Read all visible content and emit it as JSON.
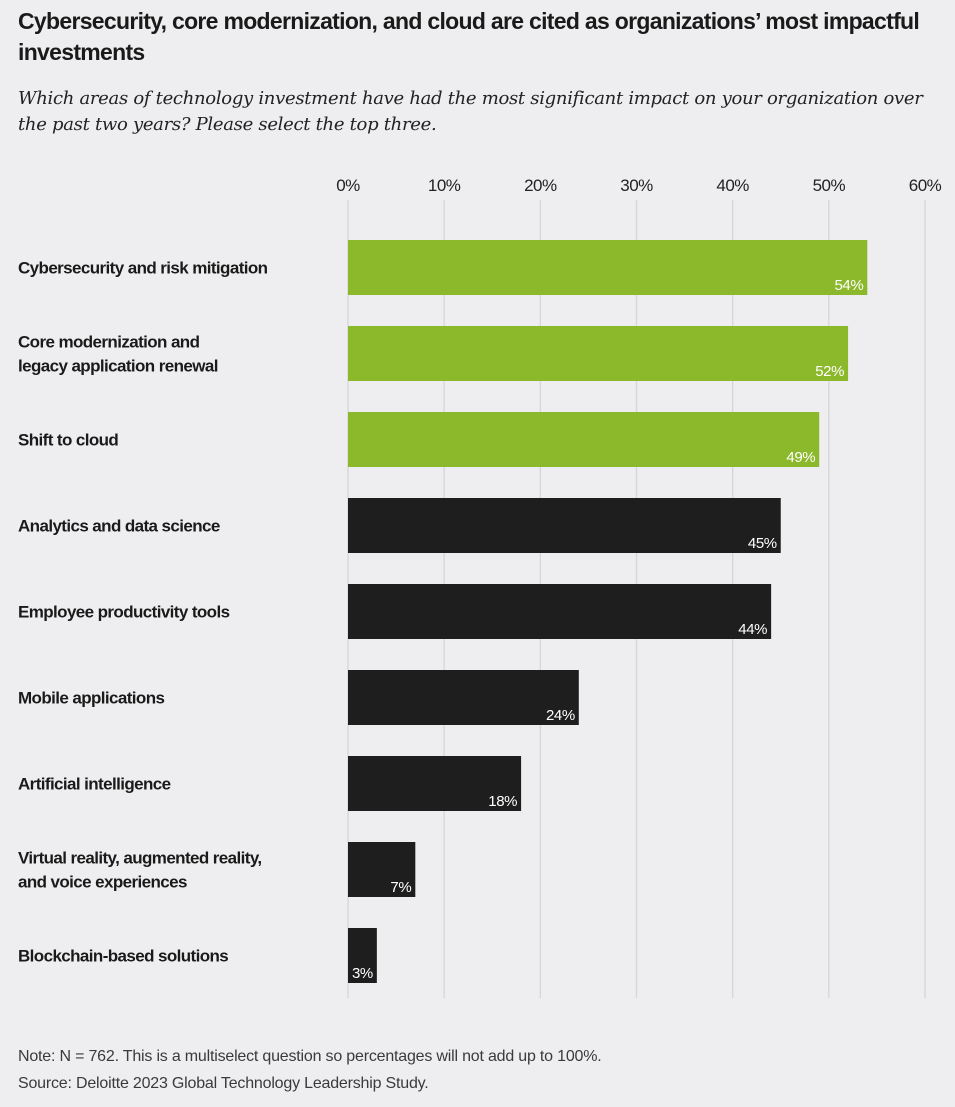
{
  "title": "Cybersecurity, core modernization, and cloud are cited as organizations’ most impactful investments",
  "subtitle": "Which areas of technology investment have had the most significant impact on your organization over the past two years? Please select the top three.",
  "note": "Note: N = 762. This is a multiselect question so percentages will not add up to 100%.",
  "source": "Source: Deloitte 2023 Global Technology Leadership Study.",
  "colors": {
    "background": "#eeeef0",
    "highlight": "#8cb82b",
    "default": "#1e1e1e",
    "grid": "#d6d6d8"
  },
  "chart_data": {
    "type": "bar",
    "orientation": "horizontal",
    "categories": [
      [
        "Cybersecurity and risk mitigation"
      ],
      [
        "Core modernization and",
        "legacy application renewal"
      ],
      [
        "Shift to cloud"
      ],
      [
        "Analytics and data science"
      ],
      [
        "Employee productivity tools"
      ],
      [
        "Mobile applications"
      ],
      [
        "Artificial intelligence"
      ],
      [
        "Virtual reality, augmented reality,",
        "and voice experiences"
      ],
      [
        "Blockchain-based solutions"
      ]
    ],
    "values": [
      54,
      52,
      49,
      45,
      44,
      24,
      18,
      7,
      3
    ],
    "data_labels": [
      "54%",
      "52%",
      "49%",
      "45%",
      "44%",
      "24%",
      "18%",
      "7%",
      "3%"
    ],
    "highlighted": [
      true,
      true,
      true,
      false,
      false,
      false,
      false,
      false,
      false
    ],
    "xlim": [
      0,
      60
    ],
    "xticks": [
      0,
      10,
      20,
      30,
      40,
      50,
      60
    ],
    "xtick_labels": [
      "0%",
      "10%",
      "20%",
      "30%",
      "40%",
      "50%",
      "60%"
    ],
    "axis_position": "top",
    "grid": true,
    "legend": "none"
  }
}
